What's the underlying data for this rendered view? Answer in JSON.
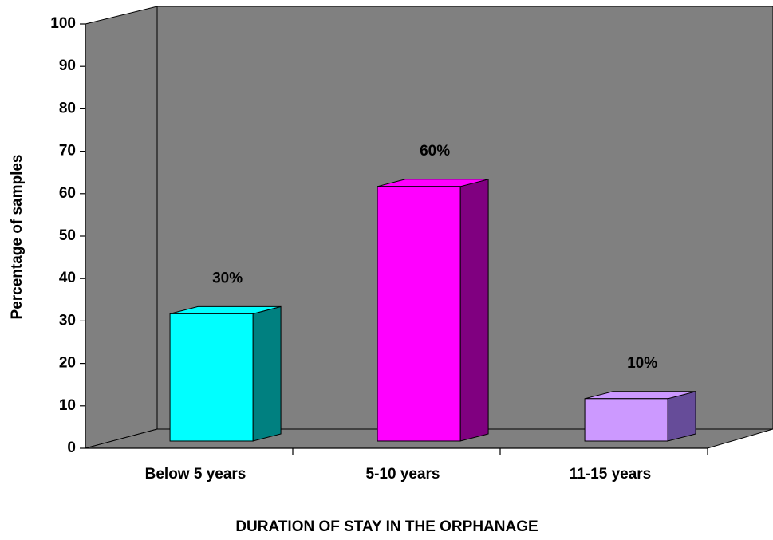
{
  "chart_data": {
    "type": "bar3d",
    "y_label": "Percentage of samples",
    "x_label": "DURATION OF STAY IN THE ORPHANAGE",
    "categories": [
      "Below 5 years",
      "5-10 years",
      "11-15 years"
    ],
    "values": [
      30,
      60,
      10
    ],
    "value_labels": [
      "30%",
      "60%",
      "10%"
    ],
    "colors": [
      "#00ffff",
      "#ff00ff",
      "#cc99ff"
    ],
    "side_colors": [
      "#008080",
      "#800080",
      "#664c99"
    ],
    "ylim": [
      0,
      100
    ],
    "yticks": [
      0,
      10,
      20,
      30,
      40,
      50,
      60,
      70,
      80,
      90,
      100
    ],
    "grid": false
  }
}
